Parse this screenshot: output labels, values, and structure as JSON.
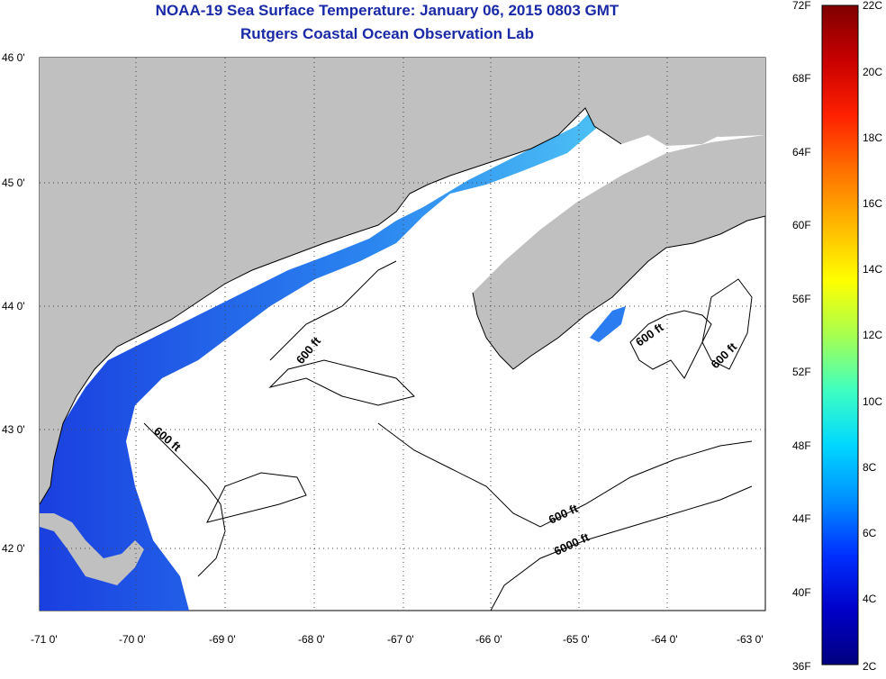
{
  "title": "NOAA-19 Sea Surface Temperature:  January 06, 2015 0803 GMT",
  "subtitle": "Rutgers Coastal Ocean Observation Lab",
  "lat_labels": [
    "46 0'",
    "45 0'",
    "44 0'",
    "43 0'",
    "42 0'"
  ],
  "lon_labels": [
    "-71 0'",
    "-70 0'",
    "-69 0'",
    "-68 0'",
    "-67 0'",
    "-66 0'",
    "-65 0'",
    "-64 0'",
    "-63 0'"
  ],
  "contour_labels": [
    "600 ft",
    "600 ft",
    "600 ft",
    "600 ft",
    "600 ft",
    "6000 ft"
  ],
  "colorbar": {
    "f_labels": [
      "72F",
      "68F",
      "64F",
      "60F",
      "56F",
      "52F",
      "48F",
      "44F",
      "40F",
      "36F"
    ],
    "c_labels": [
      "22C",
      "20C",
      "18C",
      "16C",
      "14C",
      "12C",
      "10C",
      "8C",
      "6C",
      "4C",
      "2C"
    ],
    "colors": [
      "#7f0000",
      "#c80000",
      "#ff2000",
      "#ff7000",
      "#ffb800",
      "#ffff00",
      "#a8ff50",
      "#40ffc0",
      "#00d8ff",
      "#0090ff",
      "#0030ff",
      "#0000c8",
      "#00007f"
    ]
  },
  "colors": {
    "land": "#c0c0c0",
    "ocean": "#ffffff",
    "cold_water": "#1e56e6",
    "mid_water": "#2aa0f0",
    "title": "#1a2aa6"
  }
}
